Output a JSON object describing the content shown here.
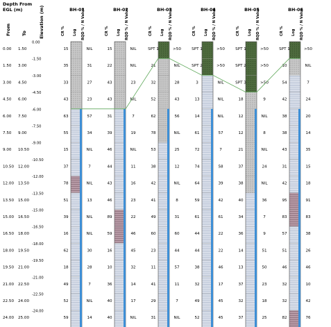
{
  "header": {
    "depth_title_line1": "Depth From",
    "depth_title_line2": "EGL (m)",
    "from_label": "From",
    "to_label": "To",
    "elevation_label": "Elevation (m)"
  },
  "rows": [
    {
      "from": "0.00",
      "to": "1.50"
    },
    {
      "from": "1.50",
      "to": "3.00"
    },
    {
      "from": "3.00",
      "to": "4.50"
    },
    {
      "from": "4.50",
      "to": "6.00"
    },
    {
      "from": "6.00",
      "to": "7.50"
    },
    {
      "from": "7.50",
      "to": "9.00"
    },
    {
      "from": "9.00",
      "to": "10.50"
    },
    {
      "from": "10.50",
      "to": "12.00"
    },
    {
      "from": "12.00",
      "to": "13.50"
    },
    {
      "from": "13.50",
      "to": "15.00"
    },
    {
      "from": "15.00",
      "to": "16.50"
    },
    {
      "from": "16.50",
      "to": "18.00"
    },
    {
      "from": "18.00",
      "to": "19.50"
    },
    {
      "from": "19.50",
      "to": "21.00"
    },
    {
      "from": "21.00",
      "to": "22.50"
    },
    {
      "from": "22.50",
      "to": "24.00"
    },
    {
      "from": "24.00",
      "to": "25.00"
    }
  ],
  "elevations": [
    "0.00",
    "-1.50",
    "-3.00",
    "-4.50",
    "-6.00",
    "-7.50",
    "-9.00",
    "-10.50",
    "-12.00",
    "-13.50",
    "-15.00",
    "-16.50",
    "-18.00",
    "-19.50",
    "-21.00",
    "-22.50",
    "-24.00"
  ],
  "column_headers": {
    "cr": "CR %",
    "log": "Log",
    "rqd": "RQD % / N Value"
  },
  "boreholes": [
    {
      "name": "BH-01",
      "cr": [
        "15",
        "35",
        "33",
        "43",
        "63",
        "55",
        "15",
        "37",
        "78",
        "51",
        "39",
        "16",
        "62",
        "18",
        "49",
        "52",
        "59"
      ],
      "rqd": [
        "NIL",
        "31",
        "27",
        "23",
        "57",
        "34",
        "NIL",
        "7",
        "NIL",
        "13",
        "NIL",
        "NIL",
        "30",
        "28",
        "7",
        "NIL",
        "14"
      ],
      "log": [
        "g",
        "g",
        "g",
        "g",
        "s",
        "s",
        "s",
        "s",
        "c",
        "s",
        "s",
        "s",
        "s",
        "s",
        "s",
        "s",
        "s"
      ]
    },
    {
      "name": "BH-02",
      "cr": [
        "15",
        "22",
        "43",
        "43",
        "31",
        "39",
        "46",
        "44",
        "43",
        "46",
        "89",
        "59",
        "16",
        "10",
        "36",
        "40",
        "40"
      ],
      "rqd": [
        "NIL",
        "NIL",
        "23",
        "NIL",
        "7",
        "19",
        "NIL",
        "11",
        "16",
        "23",
        "22",
        "46",
        "45",
        "32",
        "14",
        "17",
        "NIL"
      ],
      "log": [
        "g",
        "g",
        "g",
        "g",
        "s",
        "s",
        "s",
        "s",
        "s",
        "s",
        "c",
        "c",
        "s",
        "s",
        "s",
        "s",
        "s"
      ]
    },
    {
      "name": "BH-03",
      "cr": [
        "SPT 1",
        "21",
        "32",
        "52",
        "62",
        "78",
        "53",
        "38",
        "42",
        "41",
        "49",
        "60",
        "23",
        "11",
        "41",
        "29",
        "31"
      ],
      "rqd": [
        ">50",
        "NIL",
        "28",
        "43",
        "56",
        "NIL",
        "25",
        "12",
        "NIL",
        "8",
        "31",
        "60",
        "44",
        "57",
        "11",
        "7",
        "NIL"
      ],
      "log": [
        "d",
        "g",
        "g",
        "g",
        "g",
        "g",
        "s",
        "s",
        "s",
        "s",
        "s",
        "s",
        "s",
        "s",
        "s",
        "s",
        "s"
      ]
    },
    {
      "name": "BH-04",
      "cr": [
        "SPT 1",
        "SPT 2",
        "3",
        "13",
        "14",
        "61",
        "72",
        "74",
        "64",
        "59",
        "61",
        "44",
        "44",
        "38",
        "32",
        "49",
        "52"
      ],
      "rqd": [
        ">50",
        ">50",
        "NIL",
        "NIL",
        "NIL",
        "57",
        "7",
        "58",
        "39",
        "42",
        "61",
        "22",
        "22",
        "46",
        "17",
        "45",
        "45"
      ],
      "log": [
        "d",
        "d",
        "s",
        "s",
        "s",
        "s",
        "s",
        "s",
        "s",
        "s",
        "s",
        "s",
        "s",
        "s",
        "s",
        "s",
        "s"
      ]
    },
    {
      "name": "BH-05",
      "cr": [
        "SPT 1",
        "SPT 2",
        "SPT 3",
        "18",
        "12",
        "12",
        "21",
        "37",
        "38",
        "40",
        "34",
        "36",
        "14",
        "13",
        "37",
        "32",
        "37"
      ],
      "rqd": [
        ">50",
        ">50",
        ">50",
        "9",
        "NIL",
        "8",
        "NIL",
        "24",
        "NIL",
        "36",
        "7",
        "9",
        "51",
        "50",
        "23",
        "18",
        "25"
      ],
      "log": [
        "d",
        "d",
        "d",
        "g",
        "g",
        "g",
        "g",
        "g",
        "g",
        "s",
        "s",
        "s",
        "s",
        "s",
        "s",
        "s",
        "s"
      ]
    },
    {
      "name": "BH-06",
      "cr": [
        "SPT 1",
        "10",
        "54",
        "42",
        "38",
        "38",
        "43",
        "31",
        "42",
        "95",
        "83",
        "57",
        "51",
        "46",
        "32",
        "32",
        "82"
      ],
      "rqd": [
        ">50",
        "NIL",
        "7",
        "24",
        "20",
        "14",
        "35",
        "15",
        "18",
        "91",
        "83",
        "38",
        "26",
        "46",
        "10",
        "42",
        "76"
      ],
      "log": [
        "d",
        "g",
        "s",
        "s",
        "s",
        "s",
        "s",
        "s",
        "s",
        "c",
        "c",
        "s",
        "s",
        "s",
        "s",
        "s",
        "c"
      ]
    }
  ],
  "colors": {
    "gravel_fill": "#c9c9c9",
    "sandstone_fill": "#dfe4ee",
    "claystone_fill": "#b79aa6",
    "dense_fill": "#4d6a3d",
    "water_bar": "#3e8fd6",
    "strata_line": "#5fa85a",
    "grid_line": "#9a9a9a"
  }
}
